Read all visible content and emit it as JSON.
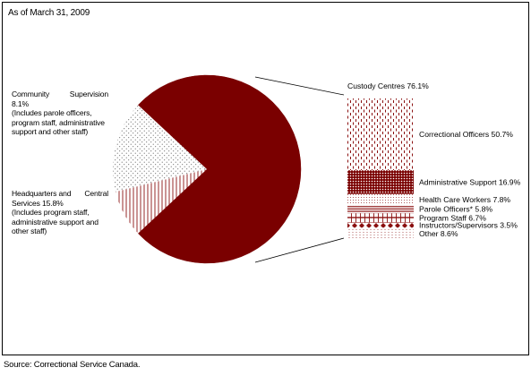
{
  "date_note": "As of March 31, 2009",
  "source": "Source: Correctional Service Canada.",
  "colors": {
    "dark_red": "#7a0000",
    "pattern": "#8b1010"
  },
  "chart_data": {
    "type": "pie",
    "title": "",
    "slices": [
      {
        "label": "Custody Centres",
        "value": 76.1,
        "value_label": "76.1%"
      },
      {
        "label": "Community Supervision",
        "value": 8.1,
        "value_label": "8.1%",
        "note": "(Includes parole officers, program staff, administrative support and other staff)"
      },
      {
        "label": "Headquarters and Central Services",
        "value": 15.8,
        "value_label": "15.8%",
        "note": "(Includes program staff, administrative support and other staff)"
      }
    ],
    "breakdown": {
      "parent": "Custody Centres",
      "title": "Custody Centres 76.1%",
      "items": [
        {
          "label": "Correctional Officers",
          "value": 50.7,
          "value_label": "50.7%"
        },
        {
          "label": "Administrative Support",
          "value": 16.9,
          "value_label": "16.9%"
        },
        {
          "label": "Health Care Workers",
          "value": 7.8,
          "value_label": "7.8%"
        },
        {
          "label": "Parole Officers*",
          "value": 5.8,
          "value_label": "5.8%"
        },
        {
          "label": "Program Staff",
          "value": 6.7,
          "value_label": "6.7%"
        },
        {
          "label": "Instructors/Supervisors",
          "value": 3.5,
          "value_label": "3.5%"
        },
        {
          "label": "Other",
          "value": 8.6,
          "value_label": "8.6%"
        }
      ]
    }
  }
}
